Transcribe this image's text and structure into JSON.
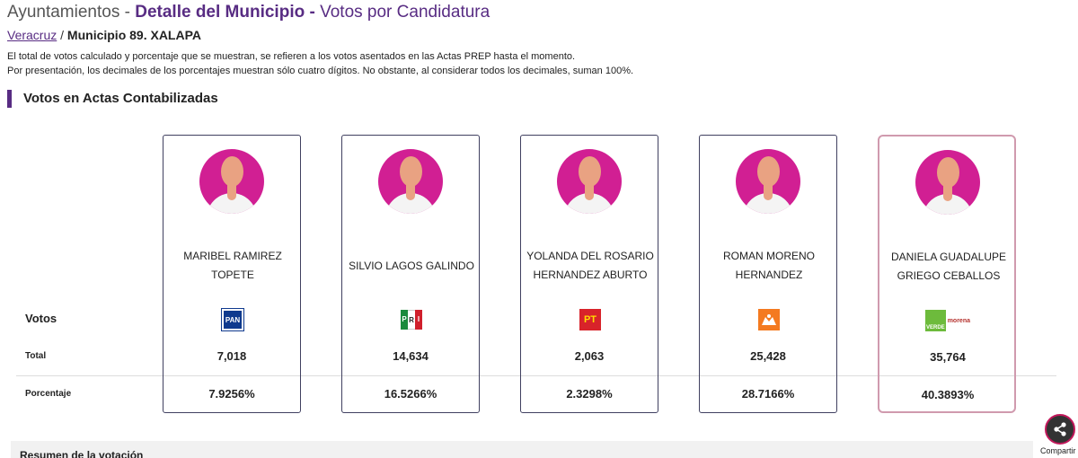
{
  "header": {
    "section": "Ayuntamientos",
    "sep1": " - ",
    "detail": "Detalle del Municipio",
    "sep2": " - ",
    "view": "Votos por Candidatura"
  },
  "breadcrumb": {
    "state": "Veracruz",
    "separator": " / ",
    "municipality": "Municipio 89. XALAPA"
  },
  "notes": [
    "El total de votos calculado y porcentaje que se muestran, se refieren a los votos asentados en las Actas PREP hasta el momento.",
    "Por presentación, los decimales de los porcentajes muestran sólo cuatro dígitos. No obstante, al considerar todos los decimales, suman 100%."
  ],
  "section_title": "Votos en Actas Contabilizadas",
  "row_labels": {
    "votos": "Votos",
    "total": "Total",
    "percent": "Porcentaje"
  },
  "candidates": [
    {
      "name": "MARIBEL RAMIREZ TOPETE",
      "party": "PAN",
      "logo_text": "PAN",
      "total": "7,018",
      "percent": "7.9256%",
      "leader": false
    },
    {
      "name": "SILVIO LAGOS GALINDO",
      "party": "PRI",
      "logo_text": "PRI",
      "total": "14,634",
      "percent": "16.5266%",
      "leader": false
    },
    {
      "name": "YOLANDA DEL ROSARIO HERNANDEZ ABURTO",
      "party": "PT",
      "logo_text": "PT",
      "total": "2,063",
      "percent": "2.3298%",
      "leader": false
    },
    {
      "name": "ROMAN MORENO HERNANDEZ",
      "party": "Movimiento Ciudadano",
      "logo_text": "",
      "total": "25,428",
      "percent": "28.7166%",
      "leader": false
    },
    {
      "name": "DANIELA GUADALUPE GRIEGO CEBALLOS",
      "party": "PVEM-MORENA",
      "logo_text": "VERDE",
      "logo_text_2": "morena",
      "total": "35,764",
      "percent": "40.3893%",
      "leader": true
    }
  ],
  "summary": {
    "label": "Resumen de la votación"
  },
  "share": {
    "label": "Compartir",
    "icon": "share-icon"
  },
  "colors": {
    "accent": "#582c83",
    "avatar": "#d11f93",
    "leader_border": "#d09aae"
  }
}
